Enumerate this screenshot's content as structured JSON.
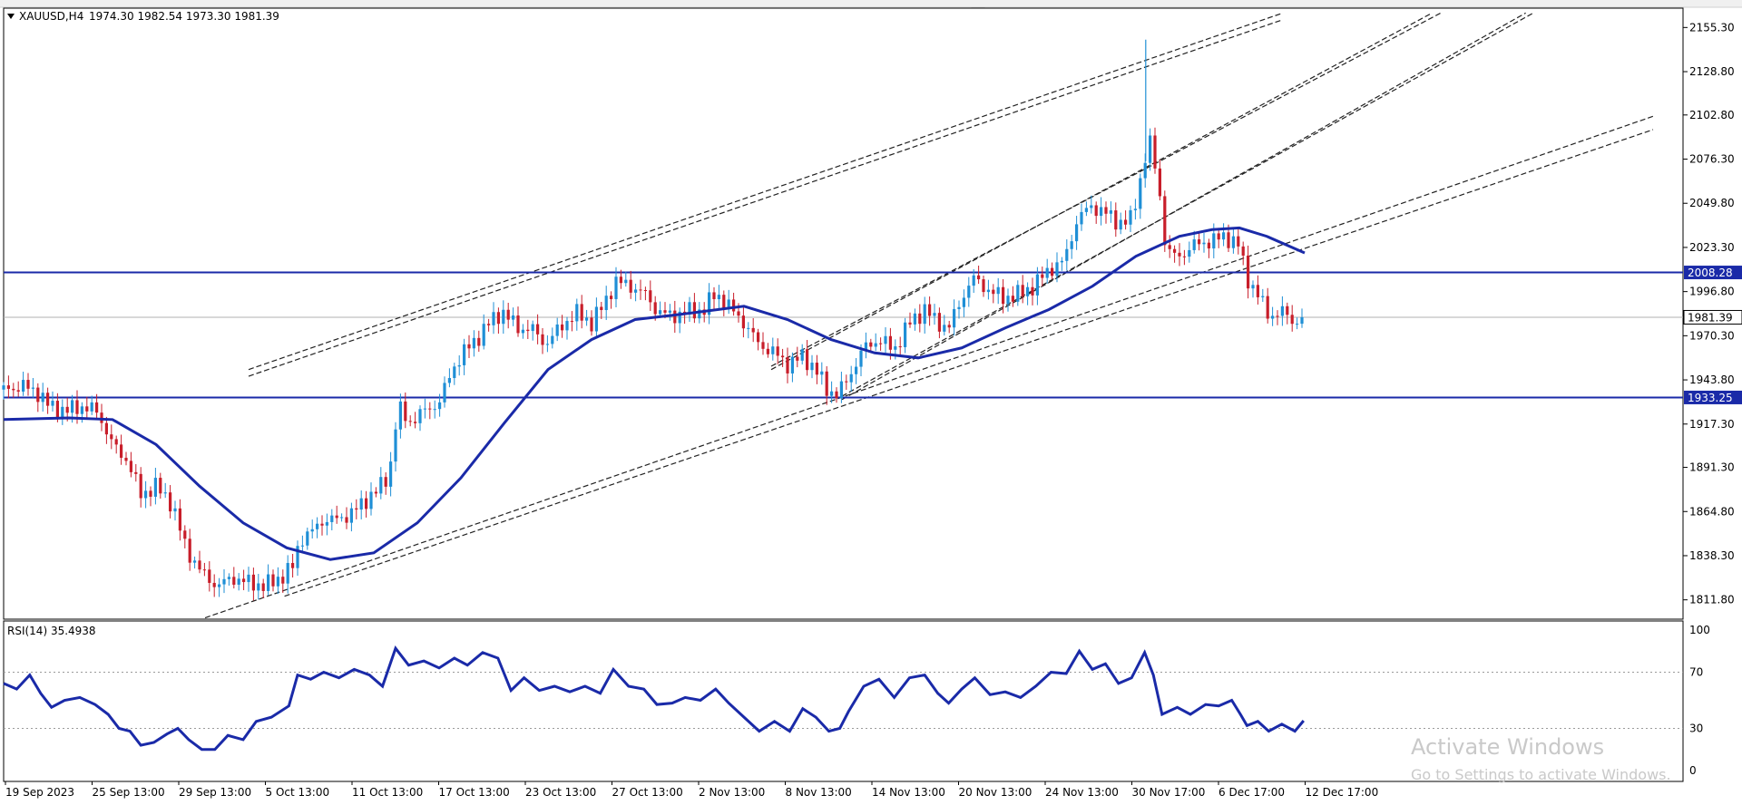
{
  "colors": {
    "bull_candle": "#1f8fd6",
    "bear_candle": "#c81e2a",
    "moving_average": "#1a2aa8",
    "level_line": "#1a2aa8",
    "channel_lines": "#222222",
    "rsi_line": "#1a2aa8",
    "bid_line": "#b0b0b0",
    "watermark": "#c9c9c9"
  },
  "header": {
    "symbol_label": "XAUUSD,H4",
    "ohlc_label": "1974.30 1982.54 1973.30 1981.39"
  },
  "levels": {
    "resistance": "2008.28",
    "support": "1933.25",
    "last_price": "1981.39"
  },
  "rsi_panel": {
    "label": "RSI(14) 35.4938"
  },
  "watermark": {
    "title": "Activate Windows",
    "subtitle": "Go to Settings to activate Windows."
  },
  "chart_data": [
    {
      "type": "candlestick",
      "symbol": "XAUUSD",
      "timeframe": "H4",
      "ylim": [
        1800.2,
        2166.9
      ],
      "y_ticks": [
        "2155.30",
        "2128.80",
        "2102.80",
        "2076.30",
        "2049.80",
        "2023.30",
        "1996.80",
        "1970.30",
        "1943.80",
        "1917.30",
        "1891.30",
        "1864.80",
        "1838.30",
        "1811.80"
      ],
      "x_ticks": [
        "19 Sep 2023",
        "25 Sep 13:00",
        "29 Sep 13:00",
        "5 Oct 13:00",
        "11 Oct 13:00",
        "17 Oct 13:00",
        "23 Oct 13:00",
        "27 Oct 13:00",
        "2 Nov 13:00",
        "8 Nov 13:00",
        "14 Nov 13:00",
        "20 Nov 13:00",
        "24 Nov 13:00",
        "30 Nov 17:00",
        "6 Dec 17:00",
        "12 Dec 17:00"
      ],
      "close_path": [
        {
          "x": 0,
          "y": 1938
        },
        {
          "x": 18,
          "y": 1940
        },
        {
          "x": 30,
          "y": 1937
        },
        {
          "x": 42,
          "y": 1928
        },
        {
          "x": 56,
          "y": 1925
        },
        {
          "x": 70,
          "y": 1928
        },
        {
          "x": 86,
          "y": 1925
        },
        {
          "x": 100,
          "y": 1905
        },
        {
          "x": 114,
          "y": 1895
        },
        {
          "x": 126,
          "y": 1875
        },
        {
          "x": 140,
          "y": 1880
        },
        {
          "x": 154,
          "y": 1870
        },
        {
          "x": 168,
          "y": 1842
        },
        {
          "x": 182,
          "y": 1828
        },
        {
          "x": 196,
          "y": 1820
        },
        {
          "x": 210,
          "y": 1825
        },
        {
          "x": 226,
          "y": 1822
        },
        {
          "x": 240,
          "y": 1820
        },
        {
          "x": 256,
          "y": 1826
        },
        {
          "x": 266,
          "y": 1832
        },
        {
          "x": 272,
          "y": 1848
        },
        {
          "x": 282,
          "y": 1852
        },
        {
          "x": 294,
          "y": 1860
        },
        {
          "x": 308,
          "y": 1860
        },
        {
          "x": 322,
          "y": 1865
        },
        {
          "x": 338,
          "y": 1875
        },
        {
          "x": 350,
          "y": 1882
        },
        {
          "x": 356,
          "y": 1895
        },
        {
          "x": 362,
          "y": 1928
        },
        {
          "x": 372,
          "y": 1918
        },
        {
          "x": 386,
          "y": 1925
        },
        {
          "x": 400,
          "y": 1930
        },
        {
          "x": 412,
          "y": 1950
        },
        {
          "x": 422,
          "y": 1960
        },
        {
          "x": 434,
          "y": 1968
        },
        {
          "x": 446,
          "y": 1978
        },
        {
          "x": 458,
          "y": 1985
        },
        {
          "x": 472,
          "y": 1975
        },
        {
          "x": 486,
          "y": 1974
        },
        {
          "x": 498,
          "y": 1965
        },
        {
          "x": 512,
          "y": 1976
        },
        {
          "x": 526,
          "y": 1984
        },
        {
          "x": 540,
          "y": 1978
        },
        {
          "x": 552,
          "y": 1990
        },
        {
          "x": 562,
          "y": 2003
        },
        {
          "x": 576,
          "y": 2000
        },
        {
          "x": 590,
          "y": 1995
        },
        {
          "x": 600,
          "y": 1985
        },
        {
          "x": 614,
          "y": 1982
        },
        {
          "x": 628,
          "y": 1985
        },
        {
          "x": 642,
          "y": 1985
        },
        {
          "x": 654,
          "y": 1996
        },
        {
          "x": 666,
          "y": 1988
        },
        {
          "x": 680,
          "y": 1978
        },
        {
          "x": 694,
          "y": 1965
        },
        {
          "x": 708,
          "y": 1960
        },
        {
          "x": 720,
          "y": 1953
        },
        {
          "x": 734,
          "y": 1958
        },
        {
          "x": 746,
          "y": 1950
        },
        {
          "x": 756,
          "y": 1938
        },
        {
          "x": 766,
          "y": 1935
        },
        {
          "x": 776,
          "y": 1945
        },
        {
          "x": 790,
          "y": 1963
        },
        {
          "x": 804,
          "y": 1968
        },
        {
          "x": 818,
          "y": 1962
        },
        {
          "x": 832,
          "y": 1978
        },
        {
          "x": 846,
          "y": 1986
        },
        {
          "x": 858,
          "y": 1978
        },
        {
          "x": 868,
          "y": 1975
        },
        {
          "x": 878,
          "y": 1990
        },
        {
          "x": 890,
          "y": 2005
        },
        {
          "x": 904,
          "y": 1998
        },
        {
          "x": 918,
          "y": 1993
        },
        {
          "x": 932,
          "y": 1995
        },
        {
          "x": 946,
          "y": 2000
        },
        {
          "x": 960,
          "y": 2010
        },
        {
          "x": 974,
          "y": 2015
        },
        {
          "x": 986,
          "y": 2040
        },
        {
          "x": 998,
          "y": 2048
        },
        {
          "x": 1010,
          "y": 2045
        },
        {
          "x": 1024,
          "y": 2038
        },
        {
          "x": 1036,
          "y": 2040
        },
        {
          "x": 1046,
          "y": 2070
        },
        {
          "x": 1052,
          "y": 2088
        },
        {
          "x": 1060,
          "y": 2065
        },
        {
          "x": 1068,
          "y": 2020
        },
        {
          "x": 1080,
          "y": 2018
        },
        {
          "x": 1094,
          "y": 2025
        },
        {
          "x": 1108,
          "y": 2027
        },
        {
          "x": 1122,
          "y": 2030
        },
        {
          "x": 1134,
          "y": 2025
        },
        {
          "x": 1142,
          "y": 2005
        },
        {
          "x": 1152,
          "y": 1995
        },
        {
          "x": 1162,
          "y": 1982
        },
        {
          "x": 1174,
          "y": 1985
        },
        {
          "x": 1186,
          "y": 1978
        },
        {
          "x": 1194,
          "y": 1981.39
        }
      ],
      "moving_average": [
        {
          "x": 0,
          "y": 1920
        },
        {
          "x": 60,
          "y": 1921
        },
        {
          "x": 100,
          "y": 1920
        },
        {
          "x": 140,
          "y": 1905
        },
        {
          "x": 180,
          "y": 1880
        },
        {
          "x": 220,
          "y": 1858
        },
        {
          "x": 260,
          "y": 1843
        },
        {
          "x": 300,
          "y": 1836
        },
        {
          "x": 340,
          "y": 1840
        },
        {
          "x": 380,
          "y": 1858
        },
        {
          "x": 420,
          "y": 1885
        },
        {
          "x": 460,
          "y": 1918
        },
        {
          "x": 500,
          "y": 1950
        },
        {
          "x": 540,
          "y": 1968
        },
        {
          "x": 580,
          "y": 1980
        },
        {
          "x": 620,
          "y": 1983
        },
        {
          "x": 680,
          "y": 1988
        },
        {
          "x": 720,
          "y": 1980
        },
        {
          "x": 760,
          "y": 1968
        },
        {
          "x": 800,
          "y": 1960
        },
        {
          "x": 840,
          "y": 1957
        },
        {
          "x": 880,
          "y": 1963
        },
        {
          "x": 920,
          "y": 1975
        },
        {
          "x": 960,
          "y": 1986
        },
        {
          "x": 1000,
          "y": 2000
        },
        {
          "x": 1040,
          "y": 2018
        },
        {
          "x": 1080,
          "y": 2030
        },
        {
          "x": 1110,
          "y": 2034
        },
        {
          "x": 1135,
          "y": 2035
        },
        {
          "x": 1160,
          "y": 2030
        },
        {
          "x": 1195,
          "y": 2020
        }
      ],
      "horizontal_levels": [
        2008.28,
        1933.25
      ],
      "channel_lines": [
        {
          "x1": 225,
          "y1": 1950,
          "x2": 1175,
          "y2": 2164
        },
        {
          "x1": 225,
          "y1": 1946,
          "x2": 1175,
          "y2": 2160
        },
        {
          "x1": 185,
          "y1": 1801,
          "x2": 1515,
          "y2": 2102
        },
        {
          "x1": 258,
          "y1": 1814,
          "x2": 1515,
          "y2": 2094
        },
        {
          "x1": 705,
          "y1": 1952,
          "x2": 1320,
          "y2": 2164
        },
        {
          "x1": 705,
          "y1": 1950,
          "x2": 1312,
          "y2": 2164
        },
        {
          "x1": 770,
          "y1": 1934,
          "x2": 1405,
          "y2": 2164
        },
        {
          "x1": 770,
          "y1": 1932,
          "x2": 1398,
          "y2": 2164
        }
      ]
    },
    {
      "type": "line",
      "name": "RSI(14)",
      "ylim": [
        0,
        100
      ],
      "y_ticks": [
        "100",
        "70",
        "30",
        "0"
      ],
      "values": [
        {
          "x": 0,
          "y": 62
        },
        {
          "x": 12,
          "y": 58
        },
        {
          "x": 24,
          "y": 68
        },
        {
          "x": 34,
          "y": 55
        },
        {
          "x": 44,
          "y": 45
        },
        {
          "x": 56,
          "y": 50
        },
        {
          "x": 70,
          "y": 52
        },
        {
          "x": 84,
          "y": 47
        },
        {
          "x": 96,
          "y": 40
        },
        {
          "x": 106,
          "y": 30
        },
        {
          "x": 116,
          "y": 28
        },
        {
          "x": 126,
          "y": 18
        },
        {
          "x": 138,
          "y": 20
        },
        {
          "x": 150,
          "y": 26
        },
        {
          "x": 160,
          "y": 30
        },
        {
          "x": 170,
          "y": 22
        },
        {
          "x": 182,
          "y": 15
        },
        {
          "x": 194,
          "y": 15
        },
        {
          "x": 206,
          "y": 25
        },
        {
          "x": 220,
          "y": 22
        },
        {
          "x": 232,
          "y": 35
        },
        {
          "x": 246,
          "y": 38
        },
        {
          "x": 262,
          "y": 46
        },
        {
          "x": 270,
          "y": 68
        },
        {
          "x": 282,
          "y": 65
        },
        {
          "x": 294,
          "y": 70
        },
        {
          "x": 308,
          "y": 66
        },
        {
          "x": 322,
          "y": 72
        },
        {
          "x": 336,
          "y": 68
        },
        {
          "x": 348,
          "y": 60
        },
        {
          "x": 360,
          "y": 87
        },
        {
          "x": 372,
          "y": 75
        },
        {
          "x": 386,
          "y": 78
        },
        {
          "x": 400,
          "y": 73
        },
        {
          "x": 414,
          "y": 80
        },
        {
          "x": 426,
          "y": 75
        },
        {
          "x": 440,
          "y": 84
        },
        {
          "x": 454,
          "y": 80
        },
        {
          "x": 466,
          "y": 57
        },
        {
          "x": 478,
          "y": 66
        },
        {
          "x": 492,
          "y": 57
        },
        {
          "x": 506,
          "y": 60
        },
        {
          "x": 520,
          "y": 56
        },
        {
          "x": 534,
          "y": 60
        },
        {
          "x": 548,
          "y": 55
        },
        {
          "x": 560,
          "y": 72
        },
        {
          "x": 574,
          "y": 60
        },
        {
          "x": 588,
          "y": 58
        },
        {
          "x": 600,
          "y": 47
        },
        {
          "x": 614,
          "y": 48
        },
        {
          "x": 626,
          "y": 52
        },
        {
          "x": 640,
          "y": 50
        },
        {
          "x": 654,
          "y": 58
        },
        {
          "x": 666,
          "y": 48
        },
        {
          "x": 680,
          "y": 38
        },
        {
          "x": 694,
          "y": 28
        },
        {
          "x": 708,
          "y": 35
        },
        {
          "x": 722,
          "y": 28
        },
        {
          "x": 734,
          "y": 44
        },
        {
          "x": 746,
          "y": 38
        },
        {
          "x": 758,
          "y": 28
        },
        {
          "x": 768,
          "y": 30
        },
        {
          "x": 776,
          "y": 42
        },
        {
          "x": 790,
          "y": 60
        },
        {
          "x": 804,
          "y": 65
        },
        {
          "x": 818,
          "y": 52
        },
        {
          "x": 832,
          "y": 66
        },
        {
          "x": 846,
          "y": 68
        },
        {
          "x": 858,
          "y": 55
        },
        {
          "x": 868,
          "y": 48
        },
        {
          "x": 880,
          "y": 58
        },
        {
          "x": 892,
          "y": 66
        },
        {
          "x": 906,
          "y": 54
        },
        {
          "x": 920,
          "y": 56
        },
        {
          "x": 934,
          "y": 52
        },
        {
          "x": 948,
          "y": 60
        },
        {
          "x": 962,
          "y": 70
        },
        {
          "x": 976,
          "y": 69
        },
        {
          "x": 988,
          "y": 85
        },
        {
          "x": 1000,
          "y": 72
        },
        {
          "x": 1012,
          "y": 76
        },
        {
          "x": 1024,
          "y": 62
        },
        {
          "x": 1036,
          "y": 66
        },
        {
          "x": 1048,
          "y": 84
        },
        {
          "x": 1056,
          "y": 68
        },
        {
          "x": 1064,
          "y": 40
        },
        {
          "x": 1078,
          "y": 45
        },
        {
          "x": 1090,
          "y": 40
        },
        {
          "x": 1104,
          "y": 47
        },
        {
          "x": 1116,
          "y": 46
        },
        {
          "x": 1128,
          "y": 50
        },
        {
          "x": 1136,
          "y": 40
        },
        {
          "x": 1142,
          "y": 32
        },
        {
          "x": 1152,
          "y": 35
        },
        {
          "x": 1162,
          "y": 28
        },
        {
          "x": 1174,
          "y": 33
        },
        {
          "x": 1186,
          "y": 28
        },
        {
          "x": 1194,
          "y": 35.4938
        }
      ]
    }
  ]
}
